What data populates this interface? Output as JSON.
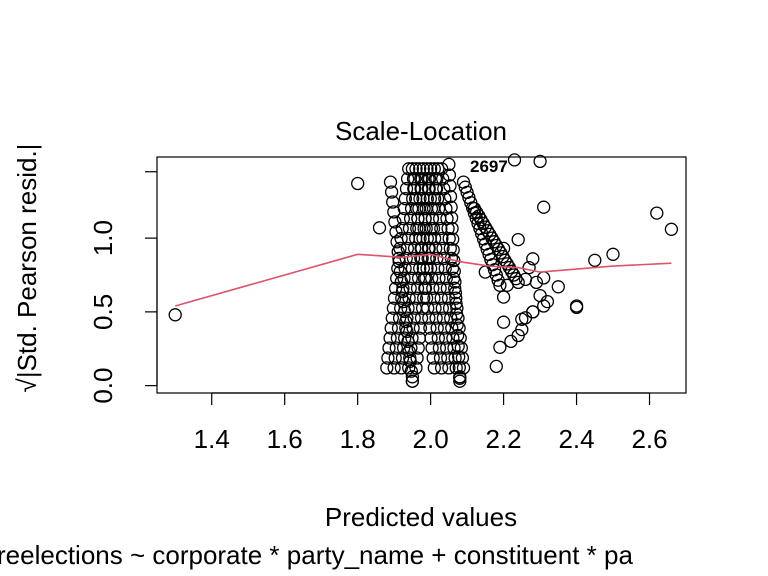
{
  "chart_data": {
    "type": "scatter",
    "title": "Scale-Location",
    "xlabel": "Predicted values",
    "ylabel": "√|Std. Pearson resid.|",
    "subtitle": "reelections ~ corporate * party_name + constituent * pa",
    "xlim": [
      1.25,
      2.7
    ],
    "ylim": [
      -0.05,
      1.55
    ],
    "x_ticks": [
      1.4,
      1.6,
      1.8,
      2.0,
      2.2,
      2.4,
      2.6
    ],
    "x_tick_labels": [
      "1.4",
      "1.6",
      "1.8",
      "2.0",
      "2.2",
      "2.4",
      "2.6"
    ],
    "y_ticks": [
      0.0,
      0.5,
      1.0
    ],
    "y_tick_labels": [
      "0.0",
      "0.5",
      "1.0"
    ],
    "point_label": "2697",
    "colors": {
      "points": "#000000",
      "smooth": "#DF536B"
    },
    "smooth_line": {
      "x": [
        1.3,
        1.8,
        1.92,
        2.0,
        2.08,
        2.16,
        2.24,
        2.3,
        2.4,
        2.5,
        2.66
      ],
      "y": [
        0.54,
        0.89,
        0.87,
        0.89,
        0.84,
        0.81,
        0.8,
        0.77,
        0.79,
        0.81,
        0.83
      ]
    },
    "series": [
      {
        "x": [
          1.3,
          1.8,
          1.86,
          2.3,
          2.31,
          2.31,
          2.24,
          2.2,
          2.45,
          2.5,
          2.62,
          2.66,
          2.4,
          2.4,
          2.31,
          2.32,
          2.28,
          2.25,
          2.2,
          2.19,
          2.18,
          2.2,
          2.21,
          2.26,
          2.27,
          2.28,
          2.29,
          2.3,
          2.25,
          2.22,
          2.24,
          2.26,
          2.28,
          2.35,
          2.15,
          1.95,
          1.95,
          2.08,
          2.08,
          2.23
        ],
        "y": [
          0.48,
          1.37,
          1.07,
          1.52,
          1.21,
          0.73,
          0.99,
          0.93,
          0.85,
          0.89,
          1.17,
          1.06,
          0.53,
          0.54,
          0.54,
          0.57,
          0.5,
          0.45,
          0.43,
          0.26,
          0.13,
          0.6,
          0.68,
          0.72,
          0.8,
          0.86,
          0.7,
          0.61,
          0.38,
          0.3,
          0.34,
          0.46,
          0.5,
          0.67,
          0.77,
          0.03,
          0.06,
          0.03,
          0.06,
          1.53
        ]
      }
    ],
    "dense_clusters": [
      {
        "x_range": [
          1.88,
          2.14
        ],
        "y_range": [
          0.03,
          1.53
        ],
        "note": "overplotted diagonal bands"
      }
    ]
  }
}
